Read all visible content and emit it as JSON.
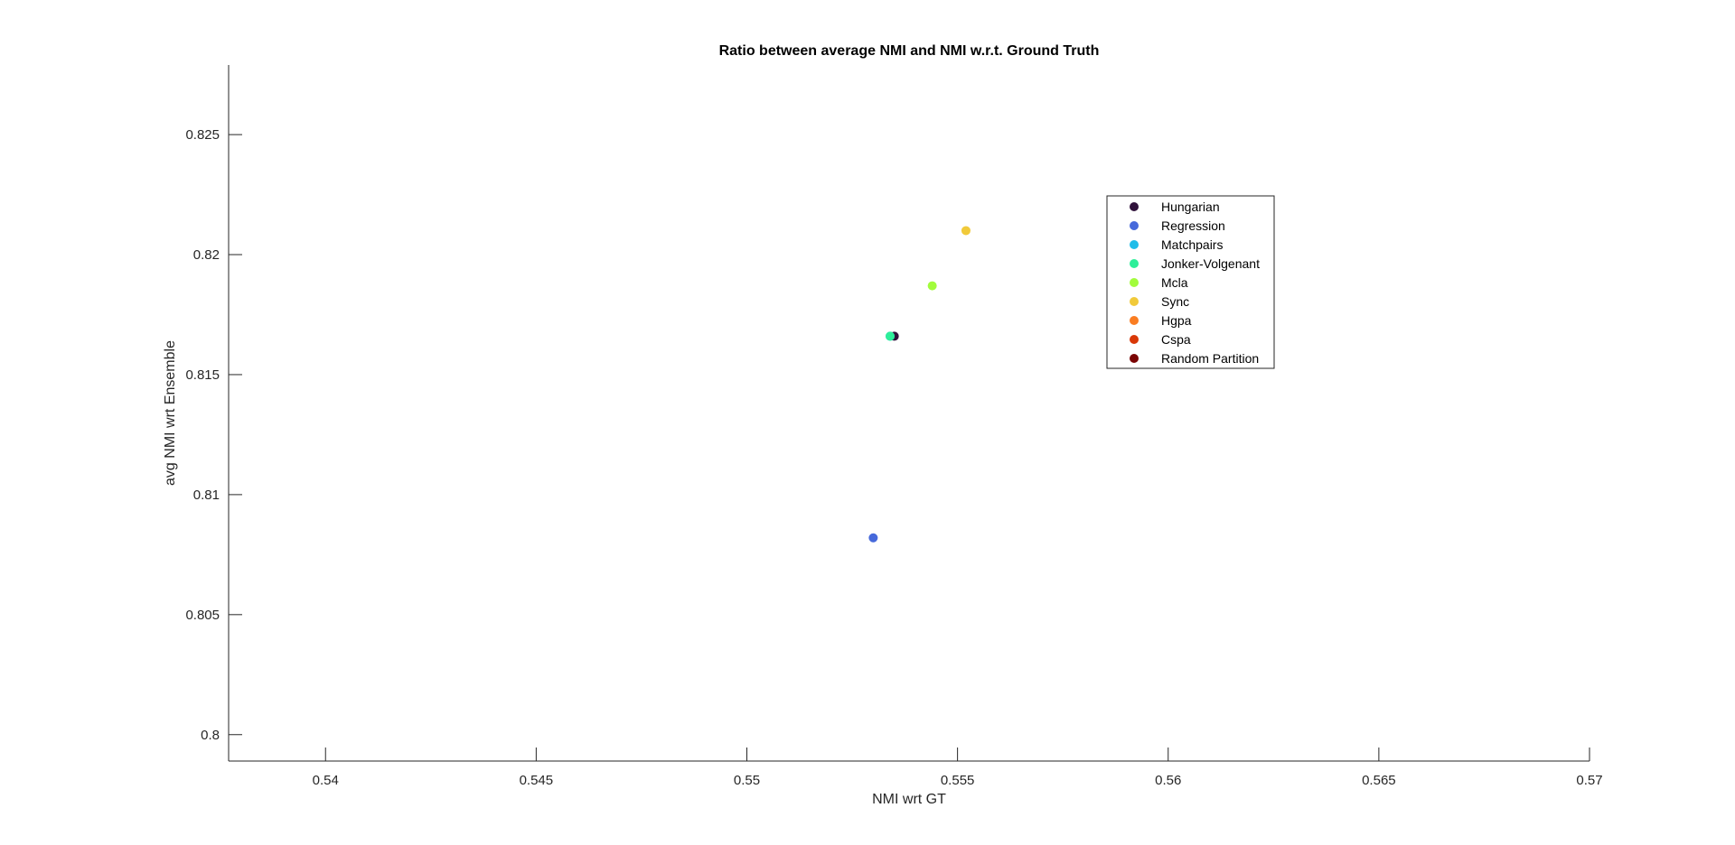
{
  "chart_data": {
    "type": "scatter",
    "title": "Ratio between average NMI and NMI w.r.t. Ground Truth",
    "xlabel": "NMI wrt GT",
    "ylabel": "avg NMI wrt Ensemble",
    "xlim": [
      0.5377,
      0.57
    ],
    "ylim": [
      0.7989,
      0.8279
    ],
    "xticks": [
      0.54,
      0.545,
      0.55,
      0.555,
      0.56,
      0.565,
      0.57
    ],
    "xtick_labels": [
      "0.54",
      "0.545",
      "0.55",
      "0.555",
      "0.56",
      "0.565",
      "0.57"
    ],
    "yticks": [
      0.8,
      0.805,
      0.81,
      0.815,
      0.82,
      0.825
    ],
    "ytick_labels": [
      "0.8",
      "0.805",
      "0.81",
      "0.815",
      "0.82",
      "0.825"
    ],
    "grid": false,
    "legend_position": "top-right",
    "series": [
      {
        "name": "Hungarian",
        "color": "#30123b",
        "x": [
          0.5535
        ],
        "y": [
          0.8166
        ]
      },
      {
        "name": "Regression",
        "color": "#4669db",
        "x": [
          0.553
        ],
        "y": [
          0.8082
        ]
      },
      {
        "name": "Matchpairs",
        "color": "#1fbde9",
        "x": [
          0.5534
        ],
        "y": [
          0.8166
        ]
      },
      {
        "name": "Jonker-Volgenant",
        "color": "#2eef9a",
        "x": [
          0.5534
        ],
        "y": [
          0.8166
        ]
      },
      {
        "name": "Mcla",
        "color": "#a2fc3c",
        "x": [
          0.5544
        ],
        "y": [
          0.8187
        ]
      },
      {
        "name": "Sync",
        "color": "#f1ca3a",
        "x": [
          0.5552
        ],
        "y": [
          0.821
        ]
      },
      {
        "name": "Hgpa",
        "color": "#fa7d22",
        "x": [],
        "y": []
      },
      {
        "name": "Cspa",
        "color": "#d93807",
        "x": [],
        "y": []
      },
      {
        "name": "Random Partition",
        "color": "#7a0403",
        "x": [],
        "y": []
      }
    ]
  }
}
